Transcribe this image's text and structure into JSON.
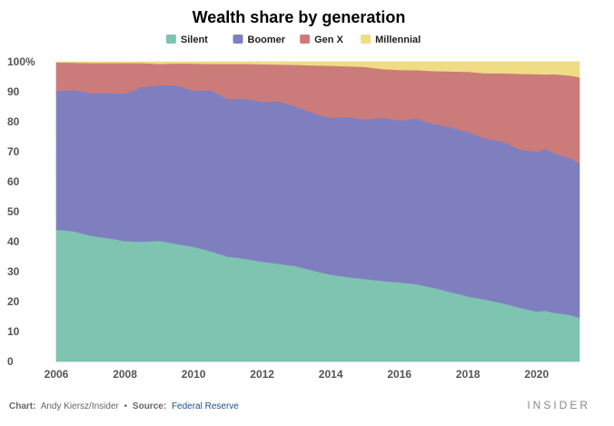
{
  "chart_data": {
    "type": "area",
    "stacked": true,
    "title": "Wealth share by generation",
    "xlabel": "",
    "ylabel": "",
    "x_ticks": [
      "2006",
      "2008",
      "2010",
      "2012",
      "2014",
      "2016",
      "2018",
      "2020"
    ],
    "y_ticks": [
      "0",
      "10",
      "20",
      "30",
      "40",
      "50",
      "60",
      "70",
      "80",
      "90",
      "100%"
    ],
    "xlim": [
      2006,
      2021.25
    ],
    "ylim": [
      0,
      100
    ],
    "grid": true,
    "legend_position": "top",
    "x": [
      2006.0,
      2006.5,
      2007.0,
      2007.5,
      2008.0,
      2008.5,
      2009.0,
      2009.5,
      2010.0,
      2010.5,
      2011.0,
      2011.5,
      2012.0,
      2012.5,
      2013.0,
      2013.5,
      2014.0,
      2014.5,
      2015.0,
      2015.5,
      2016.0,
      2016.5,
      2017.0,
      2017.5,
      2018.0,
      2018.5,
      2019.0,
      2019.5,
      2020.0,
      2020.25,
      2020.5,
      2021.0,
      2021.25
    ],
    "series": [
      {
        "name": "Silent",
        "color": "#7fc3b1",
        "values": [
          44.0,
          43.5,
          42.0,
          41.2,
          40.2,
          40.0,
          40.3,
          39.2,
          38.3,
          36.8,
          35.0,
          34.3,
          33.3,
          32.6,
          31.8,
          30.3,
          29.0,
          28.2,
          27.5,
          26.9,
          26.4,
          25.8,
          24.6,
          23.2,
          21.7,
          20.7,
          19.5,
          18.0,
          16.7,
          17.0,
          16.3,
          15.5,
          14.6
        ]
      },
      {
        "name": "Boomer",
        "color": "#7f7fc0",
        "values": [
          46.3,
          47.1,
          47.6,
          48.4,
          49.2,
          51.6,
          51.9,
          52.9,
          52.1,
          53.7,
          52.6,
          53.4,
          53.4,
          54.2,
          53.2,
          52.6,
          52.3,
          53.4,
          53.3,
          54.4,
          54.1,
          55.2,
          54.7,
          55.0,
          54.9,
          53.7,
          53.9,
          52.8,
          53.2,
          54.0,
          53.2,
          52.3,
          51.5
        ]
      },
      {
        "name": "Gen X",
        "color": "#cc7b7b",
        "values": [
          9.5,
          9.1,
          10.0,
          10.0,
          10.2,
          8.0,
          7.1,
          7.4,
          9.0,
          8.8,
          11.7,
          11.6,
          12.5,
          12.3,
          14.0,
          15.9,
          17.4,
          16.9,
          17.5,
          16.3,
          16.8,
          16.2,
          17.6,
          18.6,
          20.1,
          21.8,
          22.8,
          25.2,
          26.0,
          24.8,
          26.4,
          27.6,
          28.7
        ]
      },
      {
        "name": "Millennial",
        "color": "#efdc85",
        "values": [
          0.2,
          0.3,
          0.4,
          0.4,
          0.4,
          0.4,
          0.7,
          0.5,
          0.6,
          0.7,
          0.7,
          0.7,
          0.8,
          0.9,
          1.0,
          1.2,
          1.3,
          1.5,
          1.7,
          2.4,
          2.7,
          2.8,
          3.1,
          3.2,
          3.3,
          3.8,
          3.8,
          4.0,
          4.1,
          4.2,
          4.1,
          4.6,
          5.2
        ]
      }
    ]
  },
  "footer": {
    "chart_label": "Chart:",
    "chart_author": "Andy Kiersz/Insider",
    "bullet": "•",
    "source_label": "Source:",
    "source_name": "Federal Reserve",
    "brand": "INSIDER"
  }
}
